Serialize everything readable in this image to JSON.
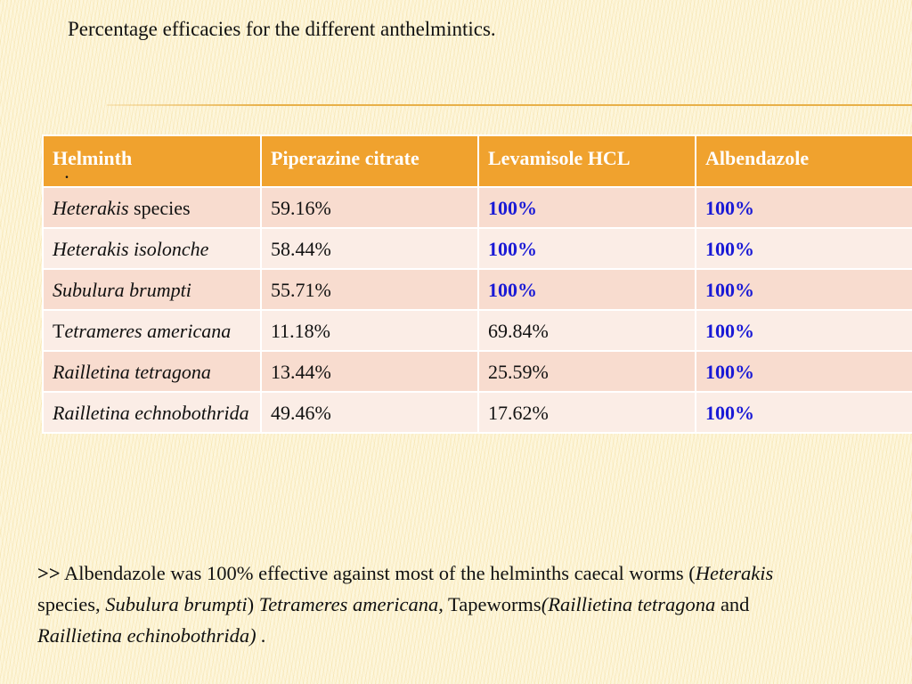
{
  "slide": {
    "title": "Percentage efficacies for the different anthelmintics."
  },
  "table": {
    "headers": [
      "Helminth",
      "Piperazine citrate",
      "Levamisole HCL",
      "Albendazole"
    ],
    "header_marker": ".",
    "rows": [
      {
        "helminth_italic": "Heterakis",
        "helminth_plain": " species",
        "piperazine": "59.16%",
        "levamisole": "100%",
        "albendazole": "100%"
      },
      {
        "helminth_italic": "Heterakis isolonche",
        "helminth_plain": "",
        "piperazine": "58.44%",
        "levamisole": "100%",
        "albendazole": "100%"
      },
      {
        "helminth_italic": "Subulura brumpti",
        "helminth_plain": "",
        "piperazine": "55.71%",
        "levamisole": "100%",
        "albendazole": "100%"
      },
      {
        "helminth_prefix": "T",
        "helminth_italic": "etrameres americana",
        "helminth_plain": "",
        "piperazine": "11.18%",
        "levamisole": "69.84%",
        "albendazole": "100%"
      },
      {
        "helminth_italic": "Railletina tetragona",
        "helminth_plain": "",
        "piperazine": "13.44%",
        "levamisole": "25.59%",
        "albendazole": "100%"
      },
      {
        "helminth_italic": "Railletina echnobothrida",
        "helminth_plain": "",
        "piperazine": "49.46%",
        "levamisole": "17.62%",
        "albendazole": "100%"
      }
    ]
  },
  "note": {
    "marker": ">>",
    "t1": " Albendazole was 100% effective against most of the helminths caecal worms (",
    "i1": "Heterakis",
    "t2": " species, ",
    "i2": "Subulura brumpti",
    "t3": ") ",
    "i3": "Tetrameres americana,",
    "t4": " Tapeworms",
    "i4": "(Raillietina tetragona",
    "t5": " and ",
    "i5": "Raillietina echinobothrida) .",
    "t6": ""
  },
  "colors": {
    "header_bg": "#f0a22e",
    "row_odd": "#f8dccf",
    "row_even": "#fbede6",
    "highlight_text": "#1a1ad6"
  }
}
